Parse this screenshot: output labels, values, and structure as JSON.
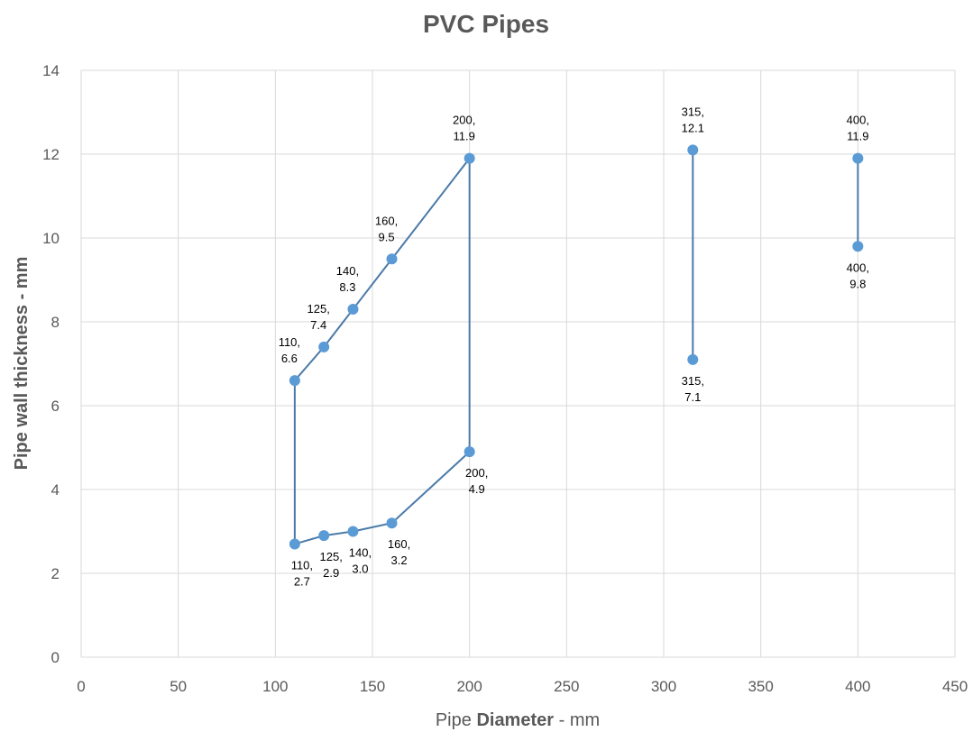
{
  "chart_data": {
    "type": "scatter",
    "title": "PVC Pipes",
    "xlabel_plain_1": "Pipe ",
    "xlabel_bold": "Diameter",
    "xlabel_plain_2": " - mm",
    "ylabel": "Pipe wall thickness - mm",
    "xlim": [
      0,
      450
    ],
    "ylim": [
      0,
      14
    ],
    "x_ticks": [
      "0",
      "50",
      "100",
      "150",
      "200",
      "250",
      "300",
      "350",
      "400",
      "450"
    ],
    "y_ticks": [
      "0",
      "2",
      "4",
      "6",
      "8",
      "10",
      "12",
      "14"
    ],
    "grid": true,
    "legend": "none",
    "line_color": "#4a7aa8",
    "marker_color": "#5b9bd5",
    "series": [
      {
        "closed": true,
        "points": [
          {
            "x": 110,
            "y": 2.7,
            "l1": "110,",
            "l2": "2.7"
          },
          {
            "x": 125,
            "y": 2.9,
            "l1": "125,",
            "l2": "2.9"
          },
          {
            "x": 140,
            "y": 3.0,
            "l1": "140,",
            "l2": "3.0"
          },
          {
            "x": 160,
            "y": 3.2,
            "l1": "160,",
            "l2": "3.2"
          },
          {
            "x": 200,
            "y": 4.9,
            "l1": "200,",
            "l2": "4.9"
          },
          {
            "x": 200,
            "y": 11.9,
            "l1": "200,",
            "l2": "11.9"
          },
          {
            "x": 160,
            "y": 9.5,
            "l1": "160,",
            "l2": "9.5"
          },
          {
            "x": 140,
            "y": 8.3,
            "l1": "140,",
            "l2": "8.3"
          },
          {
            "x": 125,
            "y": 7.4,
            "l1": "125,",
            "l2": "7.4"
          },
          {
            "x": 110,
            "y": 6.6,
            "l1": "110,",
            "l2": "6.6"
          }
        ]
      },
      {
        "closed": false,
        "points": [
          {
            "x": 315,
            "y": 12.1,
            "l1": "315,",
            "l2": "12.1"
          },
          {
            "x": 315,
            "y": 7.1,
            "l1": "315,",
            "l2": "7.1"
          }
        ]
      },
      {
        "closed": false,
        "points": [
          {
            "x": 400,
            "y": 11.9,
            "l1": "400,",
            "l2": "11.9"
          },
          {
            "x": 400,
            "y": 9.8,
            "l1": "400,",
            "l2": "9.8"
          }
        ]
      }
    ]
  }
}
